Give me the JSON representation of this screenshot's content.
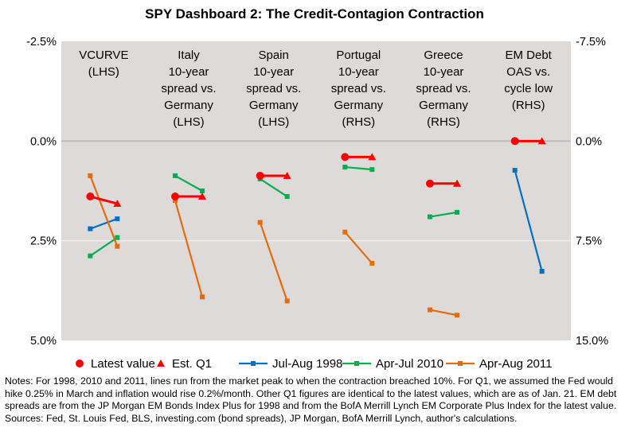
{
  "chart_data": {
    "type": "line",
    "title": "SPY Dashboard 2: The Credit-Contagion Contraction",
    "left_axis": {
      "ticks": [
        "-2.5%",
        "0.0%",
        "2.5%",
        "5.0%"
      ],
      "tick_values": [
        -2.5,
        0,
        2.5,
        5
      ],
      "range": [
        -2.5,
        5.0
      ],
      "inverted": true
    },
    "right_axis": {
      "ticks": [
        "-7.5%",
        "0.0%",
        "7.5%",
        "15.0%"
      ],
      "tick_values": [
        -7.5,
        0,
        7.5,
        15
      ],
      "range": [
        -7.5,
        15.0
      ],
      "inverted": true
    },
    "grid": true,
    "categories": [
      {
        "label": [
          "VCURVE",
          "(LHS)"
        ],
        "axis": "left"
      },
      {
        "label": [
          "Italy",
          "10-year",
          "spread vs.",
          "Germany",
          "(LHS)"
        ],
        "axis": "left"
      },
      {
        "label": [
          "Spain",
          "10-year",
          "spread vs.",
          "Germany",
          "(LHS)"
        ],
        "axis": "left"
      },
      {
        "label": [
          "Portugal",
          "10-year",
          "spread vs.",
          "Germany",
          "(RHS)"
        ],
        "axis": "right"
      },
      {
        "label": [
          "Greece",
          "10-year",
          "spread vs.",
          "Germany",
          "(RHS)"
        ],
        "axis": "right"
      },
      {
        "label": [
          "EM Debt",
          "OAS vs.",
          "cycle low",
          "(RHS)"
        ],
        "axis": "right"
      }
    ],
    "series": [
      {
        "name": "Latest value / Est. Q1",
        "color": "#ff0000",
        "values": [
          [
            1.39,
            1.57
          ],
          [
            1.39,
            1.39
          ],
          [
            0.87,
            0.87
          ],
          [
            1.2,
            1.2
          ],
          [
            3.2,
            3.2
          ],
          [
            0,
            0
          ]
        ]
      },
      {
        "name": "Jul-Aug 1998",
        "color": "#0070c0",
        "values": [
          [
            2.2,
            1.95
          ],
          null,
          null,
          null,
          null,
          [
            2.2,
            9.8
          ]
        ]
      },
      {
        "name": "Apr-Jul 2010",
        "color": "#00b050",
        "values": [
          [
            2.88,
            2.42
          ],
          [
            0.87,
            1.25
          ],
          [
            0.95,
            1.39
          ],
          [
            1.96,
            2.14
          ],
          [
            5.7,
            5.36
          ],
          null
        ]
      },
      {
        "name": "Apr-Aug 2011",
        "color": "#e46c0a",
        "values": [
          [
            0.87,
            2.64
          ],
          [
            1.49,
            3.91
          ],
          [
            2.04,
            4.01
          ],
          [
            6.85,
            9.2
          ],
          [
            12.7,
            13.1
          ],
          null
        ]
      }
    ],
    "legend": [
      {
        "label": "Latest value",
        "marker": "circle",
        "color": "#ff0000"
      },
      {
        "label": "Est. Q1",
        "marker": "triangle",
        "color": "#ff0000"
      },
      {
        "label": "Jul-Aug 1998",
        "marker": "square-line",
        "color": "#0070c0"
      },
      {
        "label": "Apr-Jul 2010",
        "marker": "square-line",
        "color": "#00b050"
      },
      {
        "label": "Apr-Aug 2011",
        "marker": "square-line",
        "color": "#e46c0a"
      }
    ],
    "legend_position": "bottom"
  },
  "notes": "Notes: For 1998, 2010 and 2011, lines run from the market peak to when the contraction breached 10%. For Q1, we assumed the Fed would hike 0.25% in March and inflation would rise 0.2%/month. Other Q1 figures are identical to the latest values, which are as of Jan. 21. EM debt spreads are from the JP Morgan EM Bonds Index Plus for 1998 and from the BofA Merrill Lynch EM Corporate Plus Index for the latest value. Sources: Fed, St. Louis Fed, BLS, investing.com (bond spreads), JP Morgan, BofA Merrill Lynch, author's calculations."
}
